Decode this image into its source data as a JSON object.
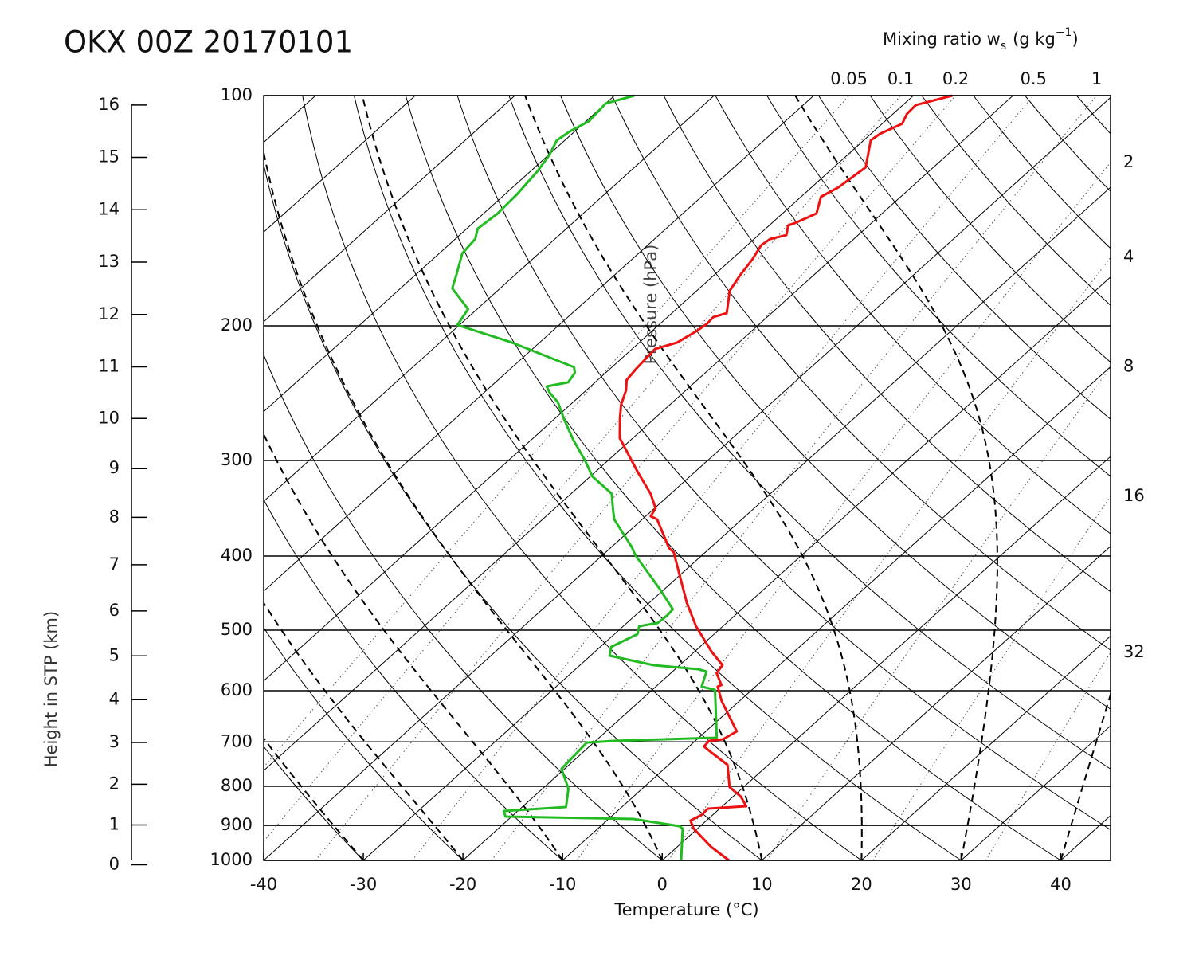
{
  "chart_data": {
    "type": "skewt",
    "title": "OKX 00Z 20170101",
    "xlabel": "Temperature (°C)",
    "pressure_label": "Pressure (hPa)",
    "height_label": "Height in STP (km)",
    "mixing_ratio_label": {
      "text": "Mixing ratio w",
      "subscript": "s",
      "unit": "(g kg",
      "superscript": "−1",
      "close": ")"
    },
    "xlim": [
      -40,
      45
    ],
    "xticks": [
      -40,
      -30,
      -20,
      -10,
      0,
      10,
      20,
      30,
      40
    ],
    "ylim": [
      1000,
      100
    ],
    "yticks": [
      100,
      200,
      300,
      400,
      500,
      600,
      700,
      800,
      900,
      1000
    ],
    "log_y": true,
    "height_ticks": [
      0,
      1,
      2,
      3,
      4,
      5,
      6,
      7,
      8,
      9,
      10,
      11,
      12,
      13,
      14,
      15,
      16
    ],
    "mixing_ratio_lines": [
      0.05,
      0.1,
      0.2,
      0.5,
      1,
      2,
      4,
      8,
      16,
      32
    ],
    "series": [
      {
        "color": "#ee1111",
        "pressure": [
          1000,
          960.0,
          908.5,
          887.0,
          872.1,
          855.6,
          849.5,
          825.4,
          802.0,
          749.9,
          723.4,
          709.7,
          697.9,
          694.5,
          678.0,
          618.8,
          592.6,
          589.8,
          569.0,
          555.6,
          533.4,
          494.0,
          460.7,
          395.3,
          390.6,
          358.2,
          354.8,
          346.4,
          331.7,
          310.2,
          280.5,
          264.2,
          253.6,
          242.9,
          235.4,
          227.1,
          214.4,
          210.3,
          202.9,
          198.6,
          194.8,
          192.5,
          179.9,
          171.5,
          163.9,
          156.9,
          154.0,
          152.2,
          147.8,
          146.8,
          142.6,
          135.6,
          134.0,
          131.8,
          124.1,
          114.4,
          112.2,
          108.8,
          105.7,
          102.9,
          100
        ],
        "values": [
          6.7,
          3.4,
          -0.4,
          -1.6,
          -1.1,
          -1.2,
          2.4,
          0.8,
          -1.4,
          -4.1,
          -7.0,
          -8.5,
          -8.6,
          -7.4,
          -6.9,
          -11.8,
          -13.8,
          -13.6,
          -15.4,
          -15.7,
          -18.3,
          -22.7,
          -26.2,
          -33.2,
          -34.1,
          -38.5,
          -39.5,
          -39.9,
          -42.0,
          -45.8,
          -51.3,
          -53.5,
          -54.9,
          -56.0,
          -57.1,
          -57.4,
          -57.7,
          -56.2,
          -55.5,
          -55.3,
          -55.4,
          -54.5,
          -56.7,
          -57.4,
          -57.9,
          -58.6,
          -58.4,
          -57.2,
          -58.1,
          -57.7,
          -56.6,
          -58.0,
          -57.7,
          -57.3,
          -56.8,
          -59.3,
          -59.1,
          -58.0,
          -58.6,
          -58.7,
          -56.1
        ]
      },
      {
        "color": "#22bb22",
        "pressure": [
          1000,
          908.5,
          902.0,
          882.8,
          876.5,
          861.8,
          851.5,
          805.9,
          759.1,
          701.3,
          697.9,
          691.1,
          598.4,
          592.6,
          566.3,
          562.3,
          555.6,
          539.9,
          525.8,
          506.0,
          494.0,
          489.3,
          477.6,
          469.6,
          442.3,
          399.0,
          389.8,
          358.2,
          348.0,
          331.7,
          329.4,
          314.7,
          300.0,
          281.8,
          265.5,
          251.8,
          244.6,
          240.0,
          237.1,
          230.4,
          226.5,
          210.3,
          199.5,
          190.2,
          178.7,
          171.5,
          160.8,
          154.0,
          149.3,
          142.6,
          134.3,
          125.6,
          119.7,
          114.4,
          111.4,
          108.0,
          102.4,
          100
        ],
        "values": [
          1.9,
          -1.5,
          -2.1,
          -7.5,
          -20.6,
          -21.4,
          -15.6,
          -17.4,
          -20.3,
          -20.7,
          -18.2,
          -8.2,
          -13.7,
          -15.4,
          -16.6,
          -17.7,
          -22.6,
          -28.1,
          -28.9,
          -27.7,
          -28.4,
          -26.9,
          -26.8,
          -26.9,
          -30.4,
          -36.7,
          -37.9,
          -42.8,
          -44.0,
          -45.9,
          -46.4,
          -49.8,
          -52.3,
          -55.8,
          -58.9,
          -61.5,
          -63.4,
          -64.4,
          -62.7,
          -63.1,
          -63.8,
          -72.8,
          -80.2,
          -80.9,
          -84.8,
          -85.9,
          -87.7,
          -88.0,
          -88.9,
          -88.6,
          -88.8,
          -89.3,
          -89.9,
          -90.8,
          -90.5,
          -89.7,
          -90.0,
          -88.0
        ]
      }
    ]
  }
}
